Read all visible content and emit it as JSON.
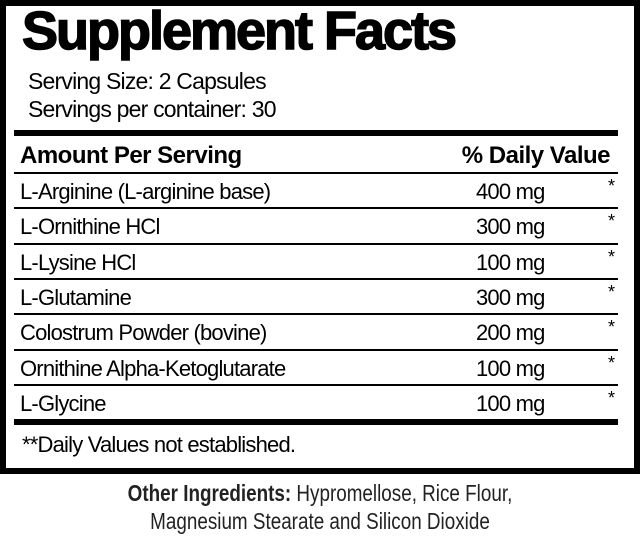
{
  "title": "Supplement Facts",
  "serving_size": "Serving Size: 2 Capsules",
  "servings_per_container": "Servings per container: 30",
  "header": {
    "amount": "Amount Per Serving",
    "daily_value": "% Daily Value"
  },
  "rows": [
    {
      "name": "L-Arginine (L-arginine base)",
      "amount": "400 mg",
      "dv": "*"
    },
    {
      "name": "L-Ornithine HCl",
      "amount": "300 mg",
      "dv": "*"
    },
    {
      "name": "L-Lysine HCl",
      "amount": "100 mg",
      "dv": "*"
    },
    {
      "name": "L-Glutamine",
      "amount": "300 mg",
      "dv": "*"
    },
    {
      "name": "Colostrum Powder (bovine)",
      "amount": "200 mg",
      "dv": "*"
    },
    {
      "name": "Ornithine Alpha-Ketoglutarate",
      "amount": "100 mg",
      "dv": "*"
    },
    {
      "name": "L-Glycine",
      "amount": "100 mg",
      "dv": "*"
    }
  ],
  "footnote": "**Daily Values not established.",
  "other_ingredients": {
    "label": "Other Ingredients:",
    "line1": " Hypromellose, Rice Flour,",
    "line2": "Magnesium Stearate and Silicon Dioxide"
  }
}
